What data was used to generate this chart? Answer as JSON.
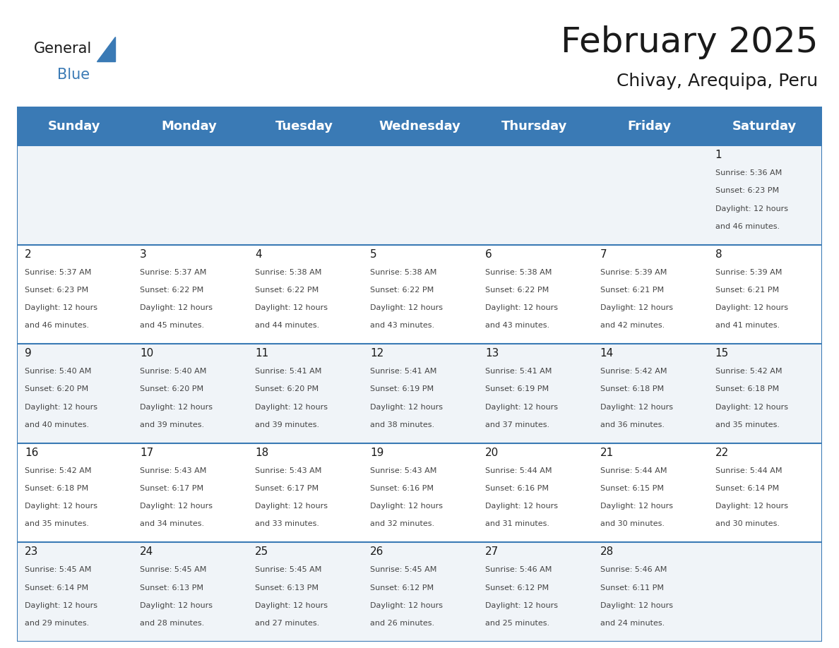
{
  "title": "February 2025",
  "subtitle": "Chivay, Arequipa, Peru",
  "header_bg": "#3a7ab5",
  "header_text": "#ffffff",
  "row_bg_alt": "#f0f4f8",
  "row_bg_main": "#ffffff",
  "border_color": "#3a7ab5",
  "cell_border_color": "#3a7ab5",
  "day_headers": [
    "Sunday",
    "Monday",
    "Tuesday",
    "Wednesday",
    "Thursday",
    "Friday",
    "Saturday"
  ],
  "days": [
    {
      "day": 1,
      "col": 6,
      "row": 0,
      "sunrise": "5:36 AM",
      "sunset": "6:23 PM",
      "daylight": "12 hours and 46 minutes."
    },
    {
      "day": 2,
      "col": 0,
      "row": 1,
      "sunrise": "5:37 AM",
      "sunset": "6:23 PM",
      "daylight": "12 hours and 46 minutes."
    },
    {
      "day": 3,
      "col": 1,
      "row": 1,
      "sunrise": "5:37 AM",
      "sunset": "6:22 PM",
      "daylight": "12 hours and 45 minutes."
    },
    {
      "day": 4,
      "col": 2,
      "row": 1,
      "sunrise": "5:38 AM",
      "sunset": "6:22 PM",
      "daylight": "12 hours and 44 minutes."
    },
    {
      "day": 5,
      "col": 3,
      "row": 1,
      "sunrise": "5:38 AM",
      "sunset": "6:22 PM",
      "daylight": "12 hours and 43 minutes."
    },
    {
      "day": 6,
      "col": 4,
      "row": 1,
      "sunrise": "5:38 AM",
      "sunset": "6:22 PM",
      "daylight": "12 hours and 43 minutes."
    },
    {
      "day": 7,
      "col": 5,
      "row": 1,
      "sunrise": "5:39 AM",
      "sunset": "6:21 PM",
      "daylight": "12 hours and 42 minutes."
    },
    {
      "day": 8,
      "col": 6,
      "row": 1,
      "sunrise": "5:39 AM",
      "sunset": "6:21 PM",
      "daylight": "12 hours and 41 minutes."
    },
    {
      "day": 9,
      "col": 0,
      "row": 2,
      "sunrise": "5:40 AM",
      "sunset": "6:20 PM",
      "daylight": "12 hours and 40 minutes."
    },
    {
      "day": 10,
      "col": 1,
      "row": 2,
      "sunrise": "5:40 AM",
      "sunset": "6:20 PM",
      "daylight": "12 hours and 39 minutes."
    },
    {
      "day": 11,
      "col": 2,
      "row": 2,
      "sunrise": "5:41 AM",
      "sunset": "6:20 PM",
      "daylight": "12 hours and 39 minutes."
    },
    {
      "day": 12,
      "col": 3,
      "row": 2,
      "sunrise": "5:41 AM",
      "sunset": "6:19 PM",
      "daylight": "12 hours and 38 minutes."
    },
    {
      "day": 13,
      "col": 4,
      "row": 2,
      "sunrise": "5:41 AM",
      "sunset": "6:19 PM",
      "daylight": "12 hours and 37 minutes."
    },
    {
      "day": 14,
      "col": 5,
      "row": 2,
      "sunrise": "5:42 AM",
      "sunset": "6:18 PM",
      "daylight": "12 hours and 36 minutes."
    },
    {
      "day": 15,
      "col": 6,
      "row": 2,
      "sunrise": "5:42 AM",
      "sunset": "6:18 PM",
      "daylight": "12 hours and 35 minutes."
    },
    {
      "day": 16,
      "col": 0,
      "row": 3,
      "sunrise": "5:42 AM",
      "sunset": "6:18 PM",
      "daylight": "12 hours and 35 minutes."
    },
    {
      "day": 17,
      "col": 1,
      "row": 3,
      "sunrise": "5:43 AM",
      "sunset": "6:17 PM",
      "daylight": "12 hours and 34 minutes."
    },
    {
      "day": 18,
      "col": 2,
      "row": 3,
      "sunrise": "5:43 AM",
      "sunset": "6:17 PM",
      "daylight": "12 hours and 33 minutes."
    },
    {
      "day": 19,
      "col": 3,
      "row": 3,
      "sunrise": "5:43 AM",
      "sunset": "6:16 PM",
      "daylight": "12 hours and 32 minutes."
    },
    {
      "day": 20,
      "col": 4,
      "row": 3,
      "sunrise": "5:44 AM",
      "sunset": "6:16 PM",
      "daylight": "12 hours and 31 minutes."
    },
    {
      "day": 21,
      "col": 5,
      "row": 3,
      "sunrise": "5:44 AM",
      "sunset": "6:15 PM",
      "daylight": "12 hours and 30 minutes."
    },
    {
      "day": 22,
      "col": 6,
      "row": 3,
      "sunrise": "5:44 AM",
      "sunset": "6:14 PM",
      "daylight": "12 hours and 30 minutes."
    },
    {
      "day": 23,
      "col": 0,
      "row": 4,
      "sunrise": "5:45 AM",
      "sunset": "6:14 PM",
      "daylight": "12 hours and 29 minutes."
    },
    {
      "day": 24,
      "col": 1,
      "row": 4,
      "sunrise": "5:45 AM",
      "sunset": "6:13 PM",
      "daylight": "12 hours and 28 minutes."
    },
    {
      "day": 25,
      "col": 2,
      "row": 4,
      "sunrise": "5:45 AM",
      "sunset": "6:13 PM",
      "daylight": "12 hours and 27 minutes."
    },
    {
      "day": 26,
      "col": 3,
      "row": 4,
      "sunrise": "5:45 AM",
      "sunset": "6:12 PM",
      "daylight": "12 hours and 26 minutes."
    },
    {
      "day": 27,
      "col": 4,
      "row": 4,
      "sunrise": "5:46 AM",
      "sunset": "6:12 PM",
      "daylight": "12 hours and 25 minutes."
    },
    {
      "day": 28,
      "col": 5,
      "row": 4,
      "sunrise": "5:46 AM",
      "sunset": "6:11 PM",
      "daylight": "12 hours and 24 minutes."
    }
  ],
  "num_rows": 5,
  "num_cols": 7,
  "logo_color_general": "#1a1a1a",
  "logo_color_blue": "#3a7ab5",
  "logo_triangle_color": "#3a7ab5",
  "title_fontsize": 36,
  "subtitle_fontsize": 18,
  "header_fontsize": 13,
  "day_num_fontsize": 11,
  "cell_text_fontsize": 8.0
}
